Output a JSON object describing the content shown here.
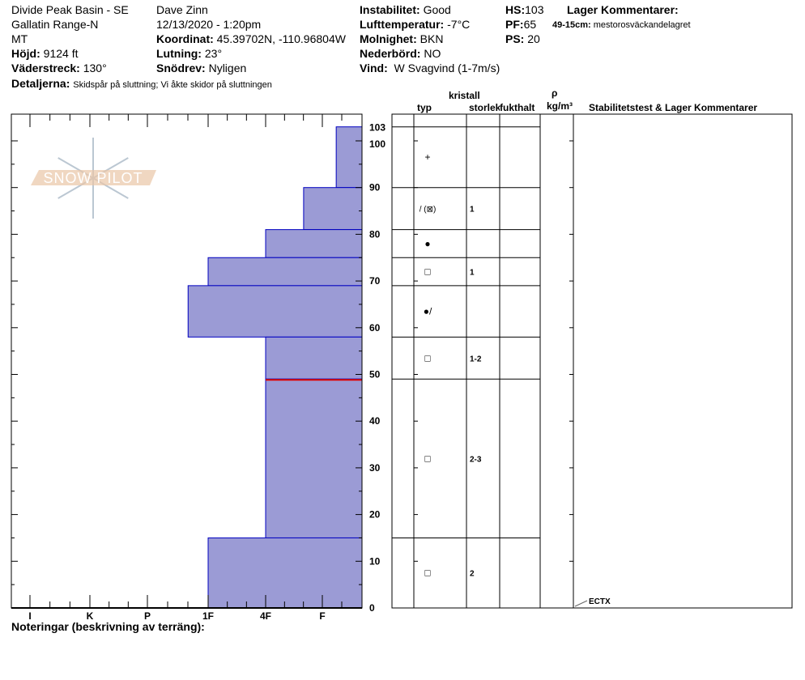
{
  "header": {
    "location": "Divide Peak Basin - SE",
    "range": "Gallatin Range-N",
    "state": "MT",
    "elevation_label": "Höjd:",
    "elevation": "9124 ft",
    "aspect_label": "Väderstreck:",
    "aspect": "130°",
    "observer": "Dave Zinn",
    "datetime": "12/13/2020 - 1:20pm",
    "coord_label": "Koordinat:",
    "coord": "45.39702N, -110.96804W",
    "slope_label": "Lutning:",
    "slope": "23°",
    "wind_loading_label": "Snödrev:",
    "wind_loading": "Nyligen",
    "details_label": "Detaljerna:",
    "details": "Skidspår på sluttning;  Vi åkte skidor på sluttningen",
    "instability_label": "Instabilitet:",
    "instability": "Good",
    "air_temp_label": "Lufttemperatur:",
    "air_temp": "-7°C",
    "sky_label": "Molnighet:",
    "sky": "BKN",
    "precip_label": "Nederbörd:",
    "precip": "NO",
    "wind_label": "Vind:",
    "wind": "W Svagvind (1-7m/s)",
    "hs_label": "HS:",
    "hs": "103",
    "pf_label": "PF:",
    "pf": "65",
    "ps_label": "PS:",
    "ps": "20",
    "layer_comments_title": "Lager Kommentarer:",
    "layer_comment_range": "49-15cm:",
    "layer_comment": "mestorosväckandelagret"
  },
  "columns": {
    "crystal": "kristall",
    "type": "typ",
    "size": "storlek",
    "moisture": "fukthalt",
    "rho": "ρ",
    "density_unit": "kg/m³",
    "comments": "Stabilitetstest & Lager Kommentarer"
  },
  "notes_label": "Noteringar (beskrivning av terräng):",
  "logo_text": "SNOW PILOT",
  "chart_data": {
    "type": "bar",
    "orientation": "horizontal-step",
    "ylabel": "",
    "ylim": [
      0,
      103
    ],
    "y_ticks": [
      0,
      10,
      20,
      30,
      40,
      50,
      60,
      70,
      80,
      90,
      100,
      103
    ],
    "x_categories": [
      "I",
      "K",
      "P",
      "1F",
      "4F",
      "F"
    ],
    "hardness_scale_note": "",
    "layers": [
      {
        "top": 103,
        "bottom": 90,
        "hardness": "F-",
        "hardness_index": 0.65,
        "grain": "+",
        "size": ""
      },
      {
        "top": 90,
        "bottom": 81,
        "hardness": "F+",
        "hardness_index": 1.33,
        "grain": "/ (⊠)",
        "size": "1"
      },
      {
        "top": 81,
        "bottom": 75,
        "hardness": "4F",
        "hardness_index": 2,
        "grain": "●",
        "size": ""
      },
      {
        "top": 75,
        "bottom": 69,
        "hardness": "1F",
        "hardness_index": 3,
        "grain": "□",
        "size": "1"
      },
      {
        "top": 69,
        "bottom": 58,
        "hardness": "1F+",
        "hardness_index": 3.33,
        "grain": "●/",
        "size": ""
      },
      {
        "top": 58,
        "bottom": 49,
        "hardness": "4F",
        "hardness_index": 2,
        "grain": "□",
        "size": "1-2"
      },
      {
        "top": 49,
        "bottom": 15,
        "hardness": "4F",
        "hardness_index": 2,
        "grain": "□",
        "size": "2-3"
      },
      {
        "top": 15,
        "bottom": 0,
        "hardness": "1F",
        "hardness_index": 3,
        "grain": "□",
        "size": "2"
      }
    ],
    "weak_layer_depth": 49,
    "stability_tests": [
      {
        "label": "ECTX",
        "height": 0
      }
    ],
    "colors": {
      "bar_fill": "#9b9bd5",
      "bar_stroke": "#0000c0",
      "weak_layer": "#e00000"
    }
  }
}
